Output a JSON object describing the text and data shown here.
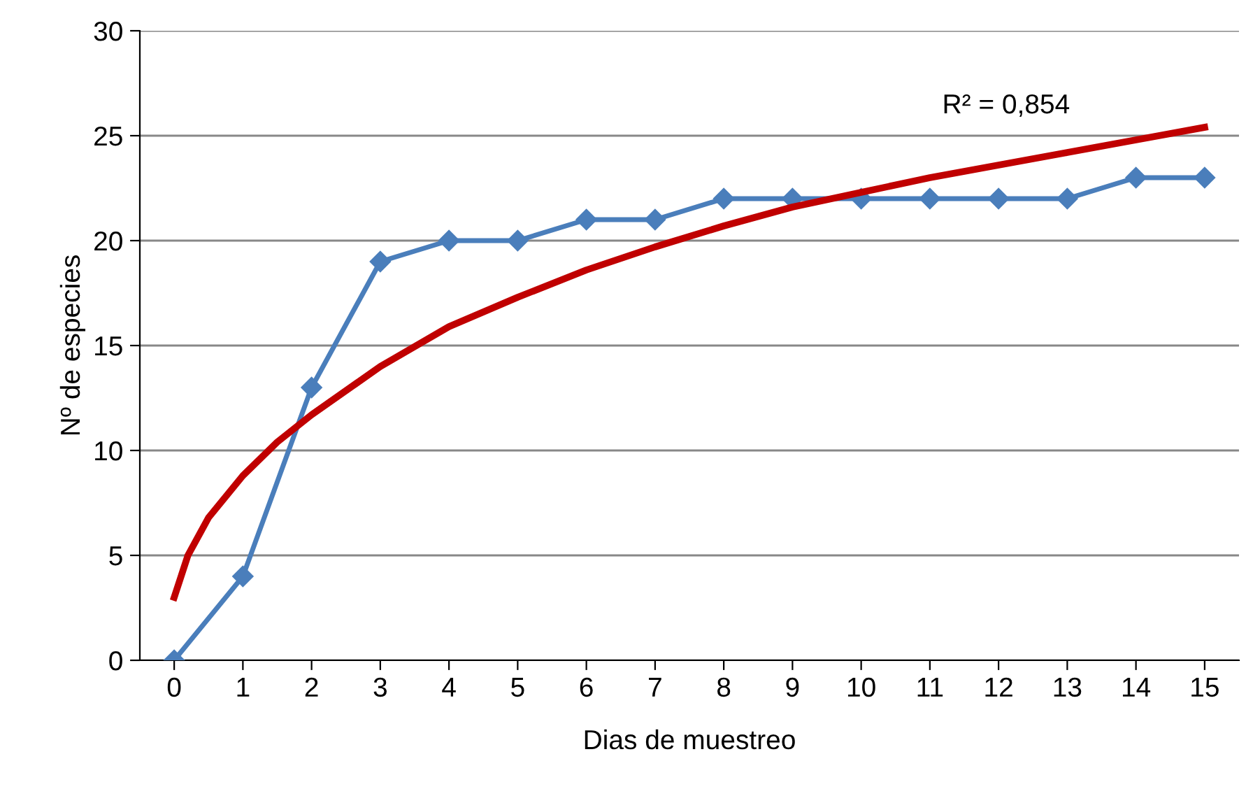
{
  "chart_data": {
    "type": "line",
    "xlabel": "Dias de muestreo",
    "ylabel": "Nº de especies",
    "x": [
      0,
      1,
      2,
      3,
      4,
      5,
      6,
      7,
      8,
      9,
      10,
      11,
      12,
      13,
      14,
      15
    ],
    "series": [
      {
        "color": "#4a7ebb",
        "marker": "diamond",
        "values": [
          0,
          4,
          13,
          19,
          20,
          20,
          21,
          21,
          22,
          22,
          22,
          22,
          22,
          22,
          23,
          23
        ]
      },
      {
        "color": "#c00000",
        "marker": "none",
        "x": [
          0,
          0.2,
          0.5,
          1,
          1.5,
          2,
          3,
          4,
          5,
          6,
          7,
          8,
          9,
          10,
          11,
          12,
          13,
          14,
          15
        ],
        "values": [
          3,
          5,
          6.8,
          8.8,
          10.4,
          11.7,
          14,
          15.9,
          17.3,
          18.6,
          19.7,
          20.7,
          21.6,
          22.3,
          23,
          23.6,
          24.2,
          24.8,
          25.4
        ]
      }
    ],
    "xlim": [
      -0.5,
      15.5
    ],
    "xticks": [
      0,
      1,
      2,
      3,
      4,
      5,
      6,
      7,
      8,
      9,
      10,
      11,
      12,
      13,
      14,
      15
    ],
    "ylim": [
      0,
      30
    ],
    "yticks": [
      0,
      5,
      10,
      15,
      20,
      25,
      30
    ],
    "grid": "y",
    "annotations": [
      "R² = 0,854"
    ]
  }
}
